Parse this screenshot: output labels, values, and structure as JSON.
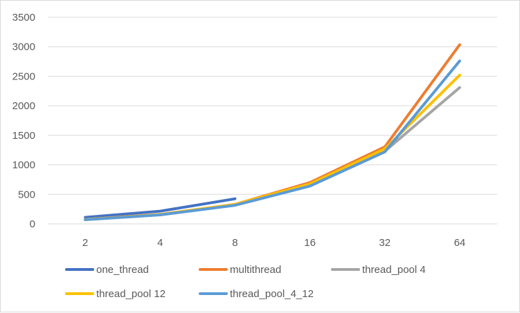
{
  "chart_data": {
    "type": "line",
    "title": "",
    "xlabel": "",
    "ylabel": "",
    "categories": [
      "2",
      "4",
      "8",
      "16",
      "32",
      "64"
    ],
    "yticks": [
      "0",
      "500",
      "1000",
      "1500",
      "2000",
      "2500",
      "3000",
      "3500"
    ],
    "ylim": [
      0,
      3500
    ],
    "grid": "horizontal",
    "legend_position": "bottom",
    "series": [
      {
        "name": "one_thread",
        "color": "#4472c4",
        "values": [
          110,
          215,
          425,
          null,
          null,
          null
        ]
      },
      {
        "name": "multithread",
        "color": "#ed7d31",
        "values": [
          75,
          160,
          330,
          700,
          1305,
          3035
        ]
      },
      {
        "name": "thread_pool 4",
        "color": "#a5a5a5",
        "values": [
          72,
          155,
          325,
          665,
          1230,
          2310
        ]
      },
      {
        "name": "thread_pool 12",
        "color": "#ffc000",
        "values": [
          74,
          158,
          330,
          675,
          1270,
          2520
        ]
      },
      {
        "name": "thread_pool_4_12",
        "color": "#5b9bd5",
        "values": [
          70,
          152,
          315,
          640,
          1220,
          2760
        ]
      }
    ]
  }
}
